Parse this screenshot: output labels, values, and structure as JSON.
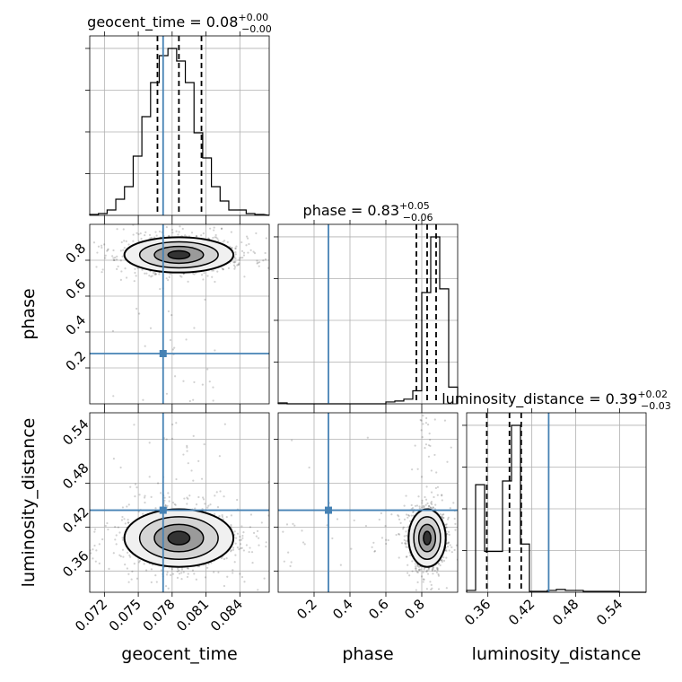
{
  "chart_data": {
    "type": "corner",
    "colors": {
      "truth": "#4682b4",
      "hist": "#000000",
      "scatter": "#000000",
      "grid": "#b0b0b0"
    },
    "parameters": [
      {
        "name": "geocent_time",
        "title_label": "geocent_time = 0.08",
        "title_plus": "+0.00",
        "title_minus": "−0.00",
        "axis_label": "geocent_time",
        "range": [
          0.0707,
          0.0866
        ],
        "truth": 0.0772,
        "quantiles": [
          0.0767,
          0.0786,
          0.0806
        ],
        "ticks": [
          0.072,
          0.075,
          0.078,
          0.081,
          0.084
        ],
        "tick_labels": [
          "0.072",
          "0.075",
          "0.078",
          "0.081",
          "0.084"
        ],
        "hist": {
          "edges_start": 0.0707,
          "bin_width": 0.00077,
          "counts": [
            0.005,
            0.01,
            0.03,
            0.09,
            0.16,
            0.33,
            0.55,
            0.74,
            0.89,
            0.93,
            0.86,
            0.74,
            0.46,
            0.32,
            0.16,
            0.08,
            0.03,
            0.03,
            0.01,
            0.005
          ]
        }
      },
      {
        "name": "phase",
        "title_label": "phase = 0.83",
        "title_plus": "+0.05",
        "title_minus": "−0.06",
        "axis_label": "phase",
        "range": [
          0.0,
          1.0
        ],
        "truth": 0.28,
        "quantiles": [
          0.77,
          0.83,
          0.88
        ],
        "ticks": [
          0.2,
          0.4,
          0.6,
          0.8
        ],
        "tick_labels": [
          "0.2",
          "0.4",
          "0.6",
          "0.8"
        ],
        "hist": {
          "edges_start": 0.0,
          "bin_width": 0.05,
          "counts": [
            0.005,
            0,
            0,
            0,
            0,
            0,
            0,
            0,
            0,
            0,
            0,
            0,
            0.01,
            0.015,
            0.025,
            0.07,
            0.6,
            0.9,
            0.62,
            0.09
          ]
        }
      },
      {
        "name": "luminosity_distance",
        "title_label": "luminosity_distance = 0.39",
        "title_plus": "+0.02",
        "title_minus": "−0.03",
        "axis_label": "luminosity_distance",
        "range": [
          0.331,
          0.576
        ],
        "truth": 0.443,
        "quantiles": [
          0.3585,
          0.3895,
          0.4055
        ],
        "ticks": [
          0.36,
          0.42,
          0.48,
          0.54
        ],
        "tick_labels": [
          "0.36",
          "0.42",
          "0.48",
          "0.54"
        ],
        "hist": {
          "edges_start": 0.331,
          "bin_width": 0.01225,
          "counts": [
            0.01,
            0.58,
            0.22,
            0.22,
            0.6,
            0.9,
            0.26,
            0.005,
            0.005,
            0.01,
            0.015,
            0.01,
            0.01,
            0.005,
            0.005,
            0.005,
            0.005,
            0,
            0,
            0
          ]
        }
      }
    ],
    "yaxis_ticks": {
      "phase": {
        "ticks": [
          0.2,
          0.4,
          0.6,
          0.8
        ],
        "tick_labels": [
          "0.2",
          "0.4",
          "0.6",
          "0.8"
        ]
      },
      "luminosity_distance": {
        "ticks": [
          0.36,
          0.42,
          0.48,
          0.54
        ],
        "tick_labels": [
          "0.36",
          "0.42",
          "0.48",
          "0.54"
        ]
      }
    },
    "posterior_peak": {
      "geocent_time": 0.0786,
      "phase": 0.83,
      "luminosity_distance": 0.405
    },
    "grid": true
  }
}
